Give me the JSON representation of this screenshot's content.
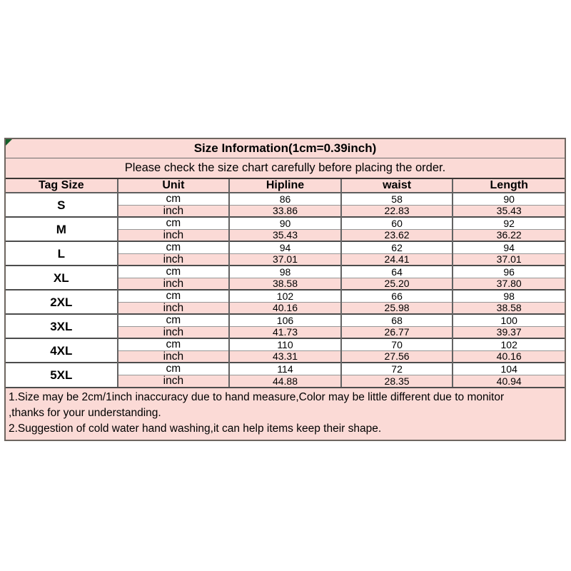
{
  "title": "Size Information(1cm=0.39inch)",
  "subtitle": "Please check the size chart carefully before placing the order.",
  "columns": {
    "tag": "Tag Size",
    "unit": "Unit",
    "hipline": "Hipline",
    "waist": "waist",
    "length": "Length"
  },
  "units": {
    "cm": "cm",
    "inch": "inch"
  },
  "sizes": [
    {
      "tag": "S",
      "cm": {
        "hipline": "86",
        "waist": "58",
        "length": "90"
      },
      "inch": {
        "hipline": "33.86",
        "waist": "22.83",
        "length": "35.43"
      }
    },
    {
      "tag": "M",
      "cm": {
        "hipline": "90",
        "waist": "60",
        "length": "92"
      },
      "inch": {
        "hipline": "35.43",
        "waist": "23.62",
        "length": "36.22"
      }
    },
    {
      "tag": "L",
      "cm": {
        "hipline": "94",
        "waist": "62",
        "length": "94"
      },
      "inch": {
        "hipline": "37.01",
        "waist": "24.41",
        "length": "37.01"
      }
    },
    {
      "tag": "XL",
      "cm": {
        "hipline": "98",
        "waist": "64",
        "length": "96"
      },
      "inch": {
        "hipline": "38.58",
        "waist": "25.20",
        "length": "37.80"
      }
    },
    {
      "tag": "2XL",
      "cm": {
        "hipline": "102",
        "waist": "66",
        "length": "98"
      },
      "inch": {
        "hipline": "40.16",
        "waist": "25.98",
        "length": "38.58"
      }
    },
    {
      "tag": "3XL",
      "cm": {
        "hipline": "106",
        "waist": "68",
        "length": "100"
      },
      "inch": {
        "hipline": "41.73",
        "waist": "26.77",
        "length": "39.37"
      }
    },
    {
      "tag": "4XL",
      "cm": {
        "hipline": "110",
        "waist": "70",
        "length": "102"
      },
      "inch": {
        "hipline": "43.31",
        "waist": "27.56",
        "length": "40.16"
      }
    },
    {
      "tag": "5XL",
      "cm": {
        "hipline": "114",
        "waist": "72",
        "length": "104"
      },
      "inch": {
        "hipline": "44.88",
        "waist": "28.35",
        "length": "40.94"
      }
    }
  ],
  "notes": {
    "lines": [
      "1.Size may be 2cm/1inch inaccuracy due to hand measure,Color may be little different due to monitor",
      ",thanks for your understanding.",
      "2.Suggestion of cold water hand washing,it can help items keep their shape."
    ]
  },
  "colors": {
    "pink": "#fbdad6",
    "outer": "#6e6660",
    "green": "#15602a"
  }
}
